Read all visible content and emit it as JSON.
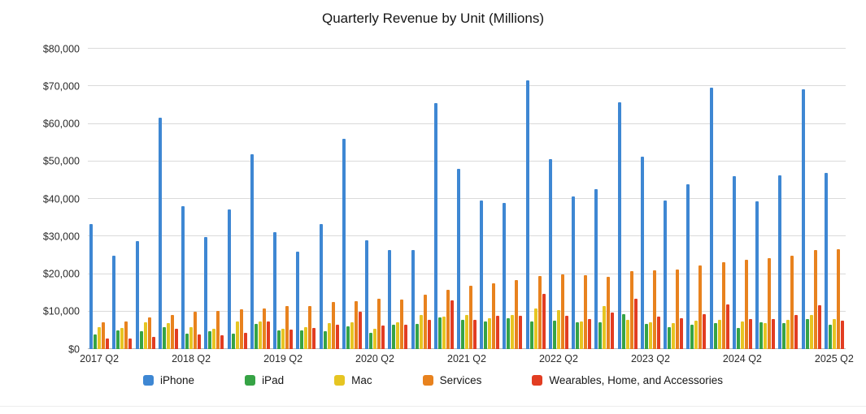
{
  "chart_data": {
    "type": "bar",
    "title": "Quarterly Revenue by Unit (Millions)",
    "xlabel": "",
    "ylabel": "",
    "ylim": [
      0,
      80000
    ],
    "grid": true,
    "legend_position": "bottom",
    "y_ticks": [
      0,
      10000,
      20000,
      30000,
      40000,
      50000,
      60000,
      70000,
      80000
    ],
    "y_tick_labels": [
      "$0",
      "$10,000",
      "$20,000",
      "$30,000",
      "$40,000",
      "$50,000",
      "$60,000",
      "$70,000",
      "$80,000"
    ],
    "x": [
      "2017 Q2",
      "2017 Q3",
      "2017 Q4",
      "2018 Q1",
      "2018 Q2",
      "2018 Q3",
      "2018 Q4",
      "2019 Q1",
      "2019 Q2",
      "2019 Q3",
      "2019 Q4",
      "2020 Q1",
      "2020 Q2",
      "2020 Q3",
      "2020 Q4",
      "2021 Q1",
      "2021 Q2",
      "2021 Q3",
      "2021 Q4",
      "2022 Q1",
      "2022 Q2",
      "2022 Q3",
      "2022 Q4",
      "2023 Q1",
      "2023 Q2",
      "2023 Q3",
      "2023 Q4",
      "2024 Q1",
      "2024 Q2",
      "2024 Q3",
      "2024 Q4",
      "2025 Q1",
      "2025 Q2"
    ],
    "x_axis_shown_ticks": [
      "2017 Q2",
      "2018 Q2",
      "2019 Q2",
      "2020 Q2",
      "2021 Q2",
      "2022 Q2",
      "2023 Q2",
      "2024 Q2",
      "2025 Q2"
    ],
    "series": [
      {
        "name": "iPhone",
        "color": "#3e87d3",
        "values": [
          33249,
          24846,
          28846,
          61576,
          38032,
          29906,
          37185,
          51982,
          31051,
          25986,
          33362,
          55957,
          28962,
          26418,
          26444,
          65597,
          47938,
          39570,
          38868,
          71628,
          50570,
          40665,
          42626,
          65775,
          51334,
          39669,
          43805,
          69702,
          45963,
          39296,
          46222,
          69138,
          46841
        ]
      },
      {
        "name": "iPad",
        "color": "#36a345",
        "values": [
          3889,
          4969,
          4831,
          5862,
          4113,
          4741,
          4089,
          6729,
          4872,
          5023,
          4656,
          5977,
          4368,
          6582,
          6797,
          8435,
          7807,
          7368,
          8252,
          7248,
          7646,
          7224,
          7174,
          9396,
          6670,
          5791,
          6443,
          7023,
          5559,
          7162,
          6950,
          8088,
          6402
        ]
      },
      {
        "name": "Mac",
        "color": "#e6c522",
        "values": [
          5844,
          5592,
          7170,
          6895,
          5848,
          5330,
          7411,
          7416,
          5513,
          5820,
          6991,
          7160,
          5351,
          7079,
          9032,
          8675,
          9102,
          8235,
          9178,
          10852,
          10435,
          7382,
          11508,
          7735,
          7168,
          6840,
          7614,
          7780,
          7451,
          7009,
          7744,
          8987,
          7949
        ]
      },
      {
        "name": "Services",
        "color": "#e8821e",
        "values": [
          7041,
          7266,
          8501,
          9129,
          9850,
          10170,
          10599,
          10875,
          11450,
          11455,
          12511,
          12715,
          13348,
          13156,
          14549,
          15761,
          16901,
          17486,
          18277,
          19516,
          19821,
          19604,
          19188,
          20766,
          20907,
          21213,
          22314,
          23117,
          23867,
          24213,
          24972,
          26340,
          26645
        ]
      },
      {
        "name": "Wearables, Home, and Accessories",
        "color": "#e23d22",
        "values": [
          2873,
          2735,
          3231,
          5489,
          3954,
          3740,
          4234,
          7308,
          5129,
          5525,
          6520,
          10010,
          6284,
          6450,
          7876,
          12971,
          7836,
          8775,
          8785,
          14701,
          8806,
          8084,
          9650,
          13482,
          8757,
          8284,
          9322,
          11953,
          7913,
          8097,
          9048,
          11747,
          7522
        ]
      }
    ]
  }
}
